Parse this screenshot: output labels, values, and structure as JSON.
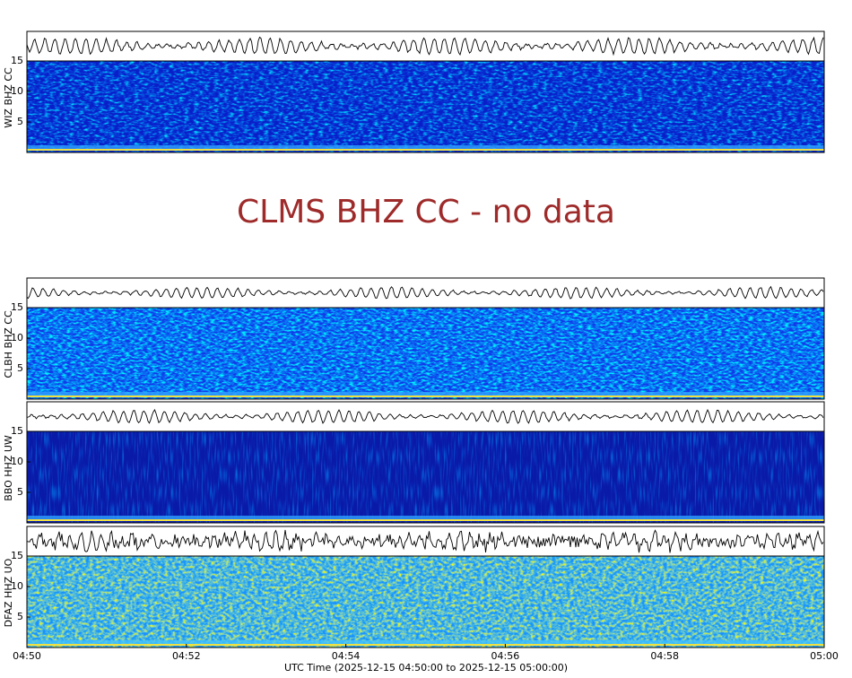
{
  "panels": [
    {
      "label": "WIZ BHZ CC",
      "ylim": [
        0,
        15
      ],
      "yticks": [
        5,
        10,
        15
      ]
    },
    {
      "label": "CLBH BHZ CC",
      "ylim": [
        0,
        15
      ],
      "yticks": [
        5,
        10,
        15
      ]
    },
    {
      "label": "BBO HHZ UW",
      "ylim": [
        0,
        15
      ],
      "yticks": [
        5,
        10,
        15
      ]
    },
    {
      "label": "DFAZ HHZ UO",
      "ylim": [
        0,
        15
      ],
      "yticks": [
        5,
        10,
        15
      ]
    }
  ],
  "no_data": "CLMS BHZ CC - no data",
  "x_axis": {
    "label": "UTC Time (2025-12-15 04:50:00 to 2025-12-15 05:00:00)",
    "ticks": [
      "04:50",
      "04:52",
      "04:54",
      "04:56",
      "04:58",
      "05:00"
    ]
  }
}
